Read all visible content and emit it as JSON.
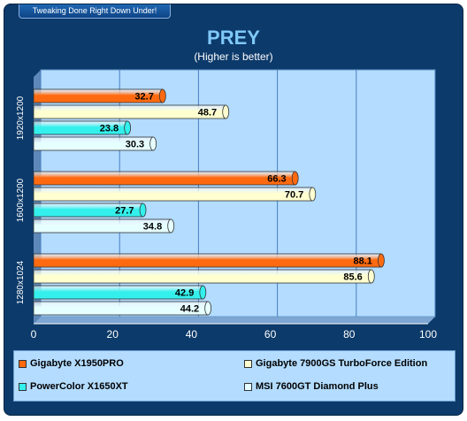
{
  "header": {
    "tag": "Tweaking Done Right Down Under!"
  },
  "chart_data": {
    "type": "bar",
    "orientation": "horizontal",
    "title": "PREY",
    "subtitle": "(Higher is better)",
    "categories": [
      "1920x1200",
      "1600x1200",
      "1280x1024"
    ],
    "xlim": [
      0,
      100
    ],
    "xticks": [
      0,
      20,
      40,
      60,
      80,
      100
    ],
    "grid": true,
    "legend_position": "bottom",
    "series": [
      {
        "name": "Gigabyte  X1950PRO",
        "color": "#ff6a10",
        "values": [
          32.7,
          66.3,
          88.1
        ]
      },
      {
        "name": "Gigabyte  7900GS TurboForce  Edition",
        "color": "#ffffd0",
        "values": [
          48.7,
          70.7,
          85.6
        ]
      },
      {
        "name": "PowerColor X1650XT",
        "color": "#33f0ec",
        "values": [
          23.8,
          27.7,
          42.9
        ]
      },
      {
        "name": "MSI 7600GT Diamond Plus",
        "color": "#e6ffff",
        "values": [
          30.3,
          34.8,
          44.2
        ]
      }
    ]
  }
}
